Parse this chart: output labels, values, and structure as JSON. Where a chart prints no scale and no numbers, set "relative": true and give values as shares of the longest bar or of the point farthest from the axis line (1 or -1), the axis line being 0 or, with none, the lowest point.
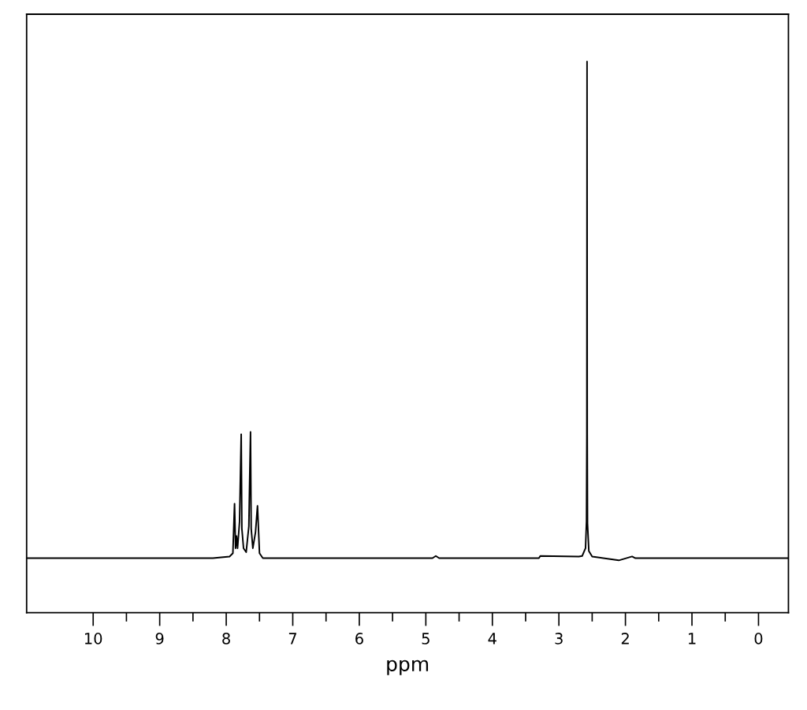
{
  "chart_data": {
    "type": "line",
    "relative": true,
    "xlabel": "ppm",
    "color": "#000000",
    "grid": false,
    "legend": false,
    "marker": "none",
    "line_style": "solid",
    "tick_labels": "x",
    "xlim": [
      11,
      -0.45
    ],
    "xticks": [
      10,
      {
        "value": 9.5,
        "label": null
      },
      9,
      {
        "value": 8.5,
        "label": null
      },
      8,
      {
        "value": 7.5,
        "label": null
      },
      7,
      {
        "value": 6.5,
        "label": null
      },
      6,
      {
        "value": 5.5,
        "label": null
      },
      5,
      {
        "value": 4.5,
        "label": null
      },
      4,
      {
        "value": 3.5,
        "label": null
      },
      3,
      {
        "value": 2.5,
        "label": null
      },
      2,
      {
        "value": 1.5,
        "label": null
      },
      1,
      {
        "value": 0.5,
        "label": null
      },
      0
    ],
    "x": [
      11,
      8.2,
      7.95,
      7.9,
      7.875,
      7.86,
      7.845,
      7.83,
      7.8,
      7.775,
      7.765,
      7.74,
      7.7,
      7.66,
      7.635,
      7.625,
      7.6,
      7.56,
      7.53,
      7.5,
      7.45,
      4.9,
      4.85,
      4.8,
      3.3,
      3.28,
      2.7,
      2.65,
      2.6,
      2.585,
      2.58,
      2.577,
      2.574,
      2.57,
      2.55,
      2.5,
      2.1,
      1.9,
      1.85,
      -0.45
    ],
    "values": [
      0.099,
      0.099,
      0.102,
      0.108,
      0.198,
      0.117,
      0.139,
      0.117,
      0.165,
      0.324,
      0.153,
      0.117,
      0.11,
      0.157,
      0.328,
      0.153,
      0.117,
      0.146,
      0.194,
      0.108,
      0.099,
      0.099,
      0.103,
      0.099,
      0.099,
      0.103,
      0.102,
      0.103,
      0.117,
      0.166,
      0.324,
      1,
      0.324,
      0.162,
      0.112,
      0.102,
      0.095,
      0.102,
      0.099,
      0.099
    ]
  }
}
